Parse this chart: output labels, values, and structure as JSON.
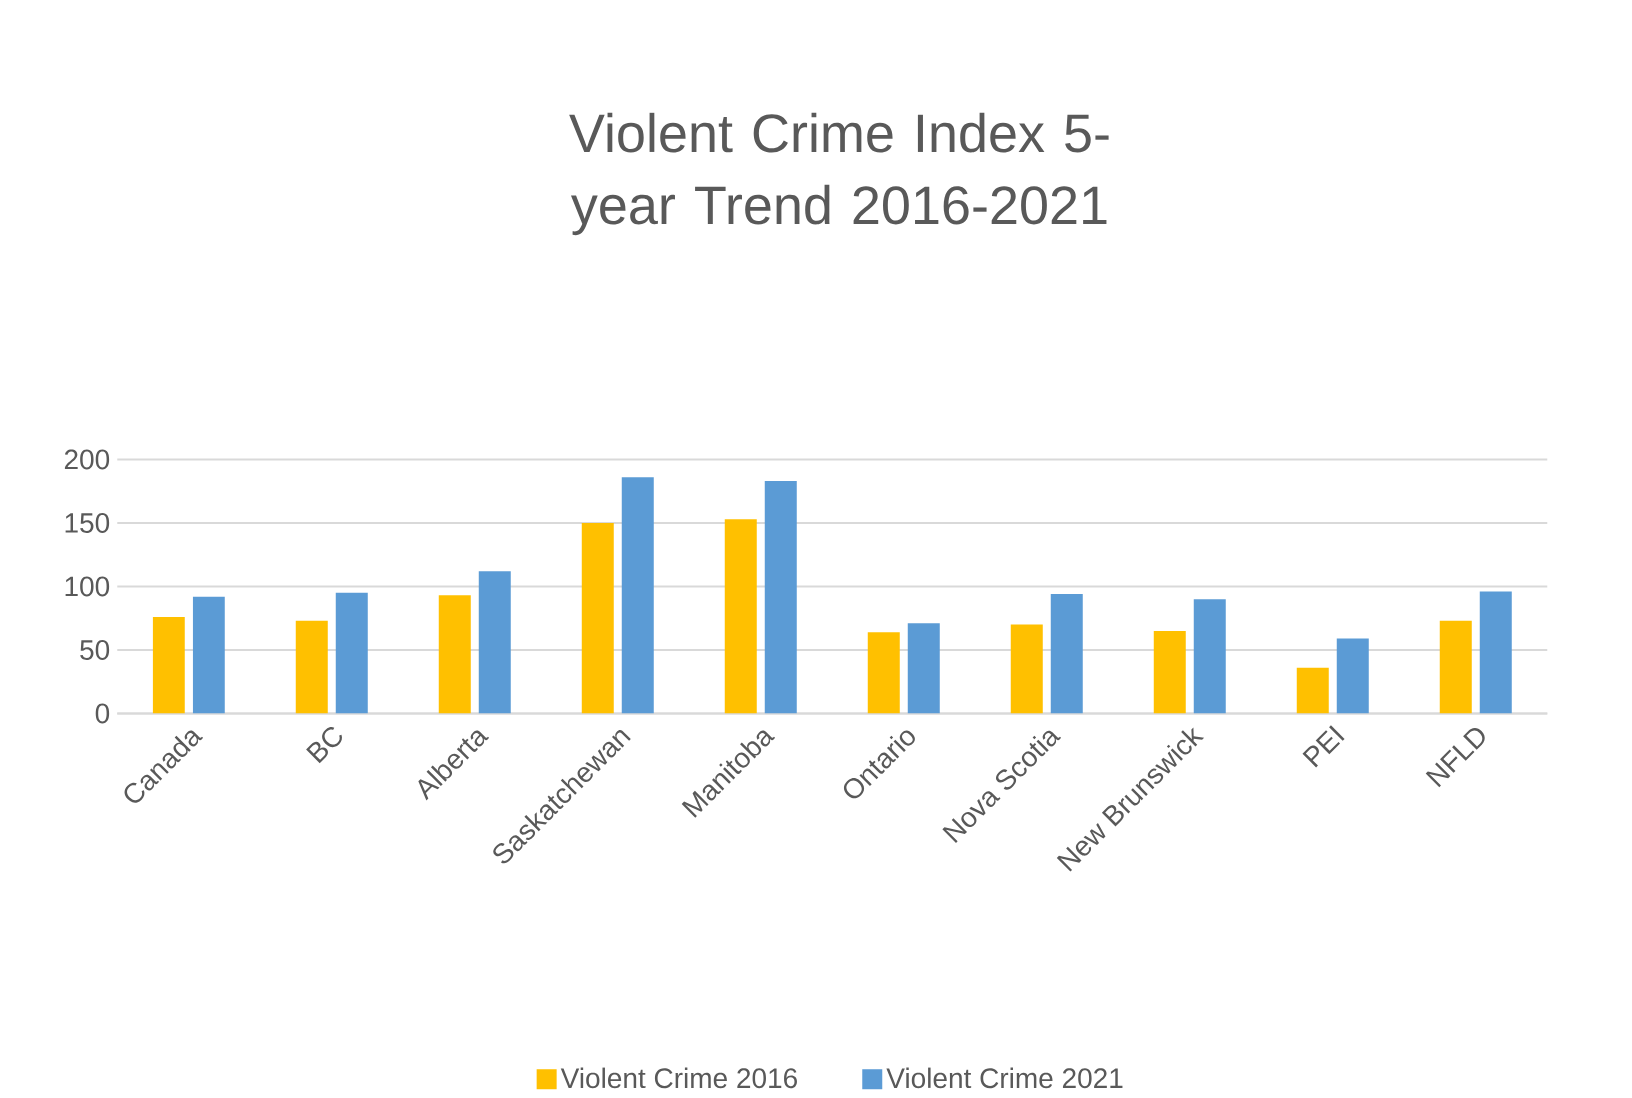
{
  "chart_data": {
    "type": "bar",
    "title": "Violent Crime Index 5-year Trend 2016-2021",
    "categories": [
      "Canada",
      "BC",
      "Alberta",
      "Saskatchewan",
      "Manitoba",
      "Ontario",
      "Nova Scotia",
      "New Brunswick",
      "PEI",
      "NFLD"
    ],
    "series": [
      {
        "name": "Violent Crime 2016",
        "color": "#ffc000",
        "values": [
          76,
          73,
          93,
          150,
          153,
          64,
          70,
          65,
          36,
          73
        ]
      },
      {
        "name": "Violent Crime 2021",
        "color": "#5b9bd5",
        "values": [
          92,
          95,
          112,
          186,
          183,
          71,
          94,
          90,
          59,
          96
        ]
      }
    ],
    "ylim": [
      0,
      200
    ],
    "yticks": [
      0,
      50,
      100,
      150,
      200
    ],
    "grid": "y",
    "legend": "bottom"
  }
}
